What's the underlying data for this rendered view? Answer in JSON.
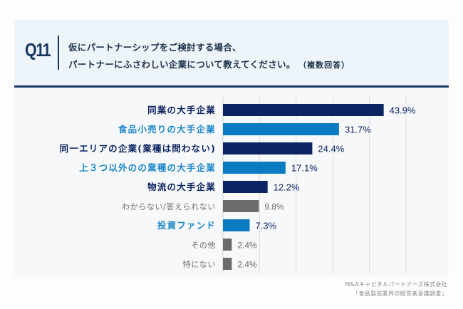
{
  "header": {
    "question_number": "Q11",
    "question_line1": "仮にパートナーシップをご検討する場合、",
    "question_line2": "パートナーにふさわしい企業について教えてください。",
    "question_note": "（複数回答）"
  },
  "footer": {
    "company": "M&Aキャピタルパートナーズ株式会社",
    "survey": "「食品製造業界の経営者意識調査」"
  },
  "colors": {
    "navy": "#0c2461",
    "blue": "#0a7bc2",
    "gray": "#6b6b6b",
    "navy_text": "#0c2461",
    "blue_text": "#1a86c8",
    "gray_text": "#6b6b6b",
    "grid": "#dddddd"
  },
  "chart_data": {
    "type": "bar",
    "orientation": "horizontal",
    "title": "仮にパートナーシップをご検討する場合、パートナーにふさわしい企業について教えてください。（複数回答）",
    "xlabel": "",
    "ylabel": "",
    "xlim": [
      0,
      60
    ],
    "grid": true,
    "grid_step": 10,
    "value_suffix": "%",
    "categories": [
      "同業の大手企業",
      "食品小売りの大手企業",
      "同一エリアの企業(業種は問わない)",
      "上３つ以外のの業種の大手企業",
      "物流の大手企業",
      "わからない/答えられない",
      "投資ファンド",
      "その他",
      "特にない"
    ],
    "values": [
      43.9,
      31.7,
      24.4,
      17.1,
      12.2,
      9.8,
      7.3,
      2.4,
      2.4
    ],
    "value_labels": [
      "43.9%",
      "31.7%",
      "24.4%",
      "17.1%",
      "12.2%",
      "9.8%",
      "7.3%",
      "2.4%",
      "2.4%"
    ],
    "styles": [
      "navy",
      "blue",
      "navy",
      "blue",
      "navy",
      "gray",
      "blue",
      "gray",
      "gray"
    ]
  }
}
